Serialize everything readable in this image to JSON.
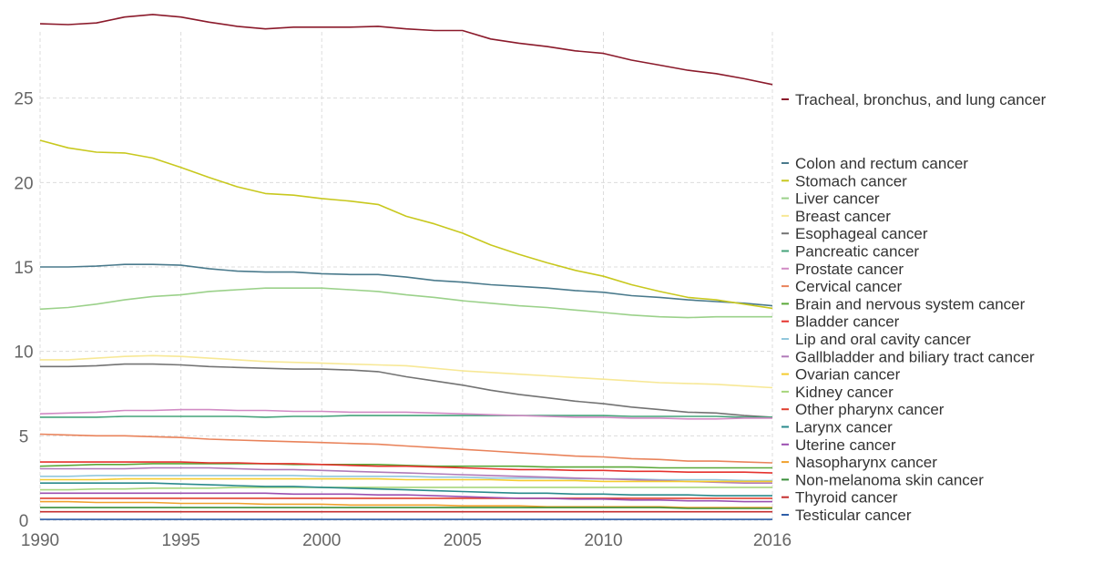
{
  "chart_data": {
    "type": "line",
    "title": "",
    "xlabel": "",
    "ylabel": "",
    "x": [
      1990,
      1991,
      1992,
      1993,
      1994,
      1995,
      1996,
      1997,
      1998,
      1999,
      2000,
      2001,
      2002,
      2003,
      2004,
      2005,
      2006,
      2007,
      2008,
      2009,
      2010,
      2011,
      2012,
      2013,
      2014,
      2015,
      2016
    ],
    "xlim": [
      1990,
      2016
    ],
    "ylim": [
      0,
      30
    ],
    "x_ticks": [
      "1990",
      "1995",
      "2000",
      "2005",
      "2010",
      "2016"
    ],
    "y_ticks": [
      "0",
      "5",
      "10",
      "15",
      "20",
      "25"
    ],
    "grid": true,
    "legend_position": "right",
    "series": [
      {
        "name": "Tracheal, bronchus, and lung cancer",
        "color": "#8b1a2b",
        "values": [
          29.4,
          29.35,
          29.45,
          29.8,
          29.95,
          29.8,
          29.5,
          29.25,
          29.1,
          29.2,
          29.2,
          29.2,
          29.25,
          29.1,
          29.0,
          29.0,
          28.5,
          28.25,
          28.05,
          27.8,
          27.65,
          27.25,
          26.95,
          26.65,
          26.45,
          26.15,
          25.8
        ]
      },
      {
        "name": "Colon and rectum cancer",
        "color": "#4a7a8c",
        "values": [
          15.0,
          15.0,
          15.05,
          15.15,
          15.15,
          15.1,
          14.9,
          14.75,
          14.7,
          14.7,
          14.6,
          14.55,
          14.55,
          14.4,
          14.2,
          14.1,
          13.95,
          13.85,
          13.75,
          13.6,
          13.5,
          13.3,
          13.2,
          13.05,
          12.95,
          12.85,
          12.7
        ]
      },
      {
        "name": "Stomach cancer",
        "color": "#c8c81e",
        "values": [
          22.5,
          22.05,
          21.8,
          21.75,
          21.45,
          20.9,
          20.3,
          19.75,
          19.35,
          19.25,
          19.05,
          18.9,
          18.7,
          18.0,
          17.55,
          17.0,
          16.3,
          15.75,
          15.25,
          14.8,
          14.45,
          13.95,
          13.55,
          13.2,
          13.05,
          12.8,
          12.55
        ]
      },
      {
        "name": "Liver cancer",
        "color": "#9bd18a",
        "values": [
          12.5,
          12.6,
          12.8,
          13.05,
          13.25,
          13.35,
          13.55,
          13.65,
          13.75,
          13.75,
          13.75,
          13.65,
          13.55,
          13.35,
          13.2,
          13.0,
          12.85,
          12.7,
          12.6,
          12.45,
          12.3,
          12.15,
          12.05,
          12.0,
          12.05,
          12.05,
          12.05
        ]
      },
      {
        "name": "Breast cancer",
        "color": "#f7e896",
        "values": [
          9.5,
          9.5,
          9.6,
          9.7,
          9.75,
          9.7,
          9.6,
          9.5,
          9.4,
          9.35,
          9.3,
          9.25,
          9.2,
          9.15,
          9.0,
          8.85,
          8.75,
          8.65,
          8.55,
          8.45,
          8.35,
          8.25,
          8.15,
          8.1,
          8.05,
          7.95,
          7.85
        ]
      },
      {
        "name": "Esophageal cancer",
        "color": "#737373",
        "values": [
          9.1,
          9.1,
          9.15,
          9.25,
          9.25,
          9.2,
          9.1,
          9.05,
          9.0,
          8.95,
          8.95,
          8.9,
          8.8,
          8.5,
          8.25,
          8.0,
          7.7,
          7.45,
          7.25,
          7.05,
          6.9,
          6.7,
          6.55,
          6.4,
          6.35,
          6.2,
          6.1
        ]
      },
      {
        "name": "Pancreatic cancer",
        "color": "#45a37a",
        "values": [
          6.1,
          6.1,
          6.1,
          6.15,
          6.15,
          6.15,
          6.15,
          6.15,
          6.1,
          6.15,
          6.15,
          6.2,
          6.2,
          6.2,
          6.2,
          6.2,
          6.2,
          6.2,
          6.2,
          6.2,
          6.2,
          6.15,
          6.15,
          6.15,
          6.15,
          6.1,
          6.1
        ]
      },
      {
        "name": "Prostate cancer",
        "color": "#d18ac4",
        "values": [
          6.3,
          6.35,
          6.4,
          6.5,
          6.5,
          6.55,
          6.55,
          6.5,
          6.5,
          6.45,
          6.45,
          6.4,
          6.4,
          6.4,
          6.35,
          6.3,
          6.25,
          6.2,
          6.15,
          6.1,
          6.1,
          6.05,
          6.05,
          6.0,
          6.0,
          6.05,
          6.05
        ]
      },
      {
        "name": "Cervical cancer",
        "color": "#e9835b",
        "values": [
          5.1,
          5.05,
          5.0,
          5.0,
          4.95,
          4.9,
          4.8,
          4.75,
          4.7,
          4.65,
          4.6,
          4.55,
          4.5,
          4.4,
          4.3,
          4.2,
          4.1,
          4.0,
          3.9,
          3.8,
          3.75,
          3.65,
          3.6,
          3.5,
          3.5,
          3.45,
          3.4
        ]
      },
      {
        "name": "Brain and nervous system cancer",
        "color": "#5ba838",
        "values": [
          3.2,
          3.25,
          3.3,
          3.3,
          3.35,
          3.35,
          3.35,
          3.35,
          3.35,
          3.3,
          3.3,
          3.3,
          3.3,
          3.25,
          3.2,
          3.2,
          3.2,
          3.2,
          3.15,
          3.15,
          3.15,
          3.15,
          3.1,
          3.1,
          3.1,
          3.1,
          3.1
        ]
      },
      {
        "name": "Bladder cancer",
        "color": "#e5322d",
        "values": [
          3.45,
          3.45,
          3.45,
          3.45,
          3.45,
          3.45,
          3.4,
          3.4,
          3.35,
          3.35,
          3.3,
          3.25,
          3.2,
          3.2,
          3.15,
          3.1,
          3.05,
          3.0,
          3.0,
          2.95,
          2.95,
          2.9,
          2.9,
          2.85,
          2.85,
          2.85,
          2.8
        ]
      },
      {
        "name": "Lip and oral cavity cancer",
        "color": "#91c7dd",
        "values": [
          2.6,
          2.6,
          2.65,
          2.65,
          2.65,
          2.65,
          2.65,
          2.65,
          2.65,
          2.65,
          2.6,
          2.6,
          2.6,
          2.6,
          2.55,
          2.55,
          2.5,
          2.5,
          2.5,
          2.45,
          2.45,
          2.45,
          2.4,
          2.4,
          2.4,
          2.35,
          2.35
        ]
      },
      {
        "name": "Gallbladder and biliary tract cancer",
        "color": "#b07ab8",
        "values": [
          3.05,
          3.05,
          3.05,
          3.05,
          3.1,
          3.1,
          3.1,
          3.05,
          3.0,
          3.0,
          2.95,
          2.9,
          2.85,
          2.8,
          2.75,
          2.7,
          2.65,
          2.6,
          2.55,
          2.5,
          2.45,
          2.4,
          2.35,
          2.3,
          2.25,
          2.2,
          2.2
        ]
      },
      {
        "name": "Ovarian cancer",
        "color": "#f5cc2e",
        "values": [
          2.4,
          2.4,
          2.4,
          2.45,
          2.45,
          2.45,
          2.45,
          2.45,
          2.45,
          2.45,
          2.45,
          2.45,
          2.45,
          2.4,
          2.4,
          2.4,
          2.4,
          2.35,
          2.35,
          2.35,
          2.3,
          2.3,
          2.3,
          2.3,
          2.3,
          2.3,
          2.3
        ]
      },
      {
        "name": "Kidney cancer",
        "color": "#a7d67c",
        "values": [
          1.8,
          1.8,
          1.85,
          1.85,
          1.9,
          1.9,
          1.9,
          1.95,
          1.95,
          1.95,
          1.95,
          1.95,
          1.95,
          1.95,
          1.95,
          1.95,
          1.95,
          1.95,
          1.95,
          1.95,
          1.95,
          1.95,
          1.95,
          1.95,
          1.95,
          1.95,
          1.95
        ]
      },
      {
        "name": "Other pharynx cancer",
        "color": "#e0402f",
        "values": [
          1.3,
          1.3,
          1.3,
          1.3,
          1.3,
          1.3,
          1.3,
          1.3,
          1.3,
          1.3,
          1.3,
          1.3,
          1.3,
          1.3,
          1.3,
          1.3,
          1.3,
          1.3,
          1.3,
          1.3,
          1.3,
          1.3,
          1.3,
          1.3,
          1.3,
          1.3,
          1.3
        ]
      },
      {
        "name": "Larynx cancer",
        "color": "#2a8a8c",
        "values": [
          2.2,
          2.2,
          2.2,
          2.2,
          2.2,
          2.15,
          2.1,
          2.05,
          2.0,
          2.0,
          1.95,
          1.9,
          1.85,
          1.8,
          1.75,
          1.7,
          1.65,
          1.6,
          1.6,
          1.55,
          1.55,
          1.5,
          1.5,
          1.5,
          1.45,
          1.45,
          1.45
        ]
      },
      {
        "name": "Uterine cancer",
        "color": "#9b4fb0",
        "values": [
          1.6,
          1.6,
          1.6,
          1.6,
          1.6,
          1.6,
          1.6,
          1.6,
          1.6,
          1.55,
          1.55,
          1.55,
          1.5,
          1.5,
          1.45,
          1.4,
          1.35,
          1.3,
          1.3,
          1.25,
          1.25,
          1.2,
          1.2,
          1.15,
          1.15,
          1.1,
          1.1
        ]
      },
      {
        "name": "Nasopharynx cancer",
        "color": "#f0a12d",
        "values": [
          1.1,
          1.1,
          1.05,
          1.05,
          1.05,
          1.0,
          1.0,
          1.0,
          0.95,
          0.95,
          0.95,
          0.9,
          0.9,
          0.9,
          0.9,
          0.85,
          0.85,
          0.85,
          0.8,
          0.8,
          0.8,
          0.8,
          0.8,
          0.75,
          0.75,
          0.75,
          0.75
        ]
      },
      {
        "name": "Non-melanoma skin cancer",
        "color": "#3a8f3a",
        "values": [
          0.75,
          0.75,
          0.75,
          0.75,
          0.75,
          0.75,
          0.75,
          0.75,
          0.75,
          0.75,
          0.75,
          0.75,
          0.75,
          0.75,
          0.75,
          0.75,
          0.75,
          0.75,
          0.75,
          0.75,
          0.75,
          0.75,
          0.75,
          0.7,
          0.7,
          0.7,
          0.7
        ]
      },
      {
        "name": "Thyroid cancer",
        "color": "#c42e2e",
        "values": [
          0.5,
          0.5,
          0.5,
          0.5,
          0.5,
          0.5,
          0.5,
          0.5,
          0.5,
          0.5,
          0.5,
          0.5,
          0.5,
          0.5,
          0.5,
          0.5,
          0.5,
          0.5,
          0.5,
          0.5,
          0.5,
          0.5,
          0.5,
          0.5,
          0.5,
          0.5,
          0.5
        ]
      },
      {
        "name": "Testicular cancer",
        "color": "#2e5ea8",
        "values": [
          0.05,
          0.05,
          0.05,
          0.05,
          0.05,
          0.05,
          0.05,
          0.05,
          0.05,
          0.05,
          0.05,
          0.05,
          0.05,
          0.05,
          0.05,
          0.05,
          0.05,
          0.05,
          0.05,
          0.05,
          0.05,
          0.05,
          0.05,
          0.05,
          0.05,
          0.05,
          0.05
        ]
      }
    ]
  }
}
